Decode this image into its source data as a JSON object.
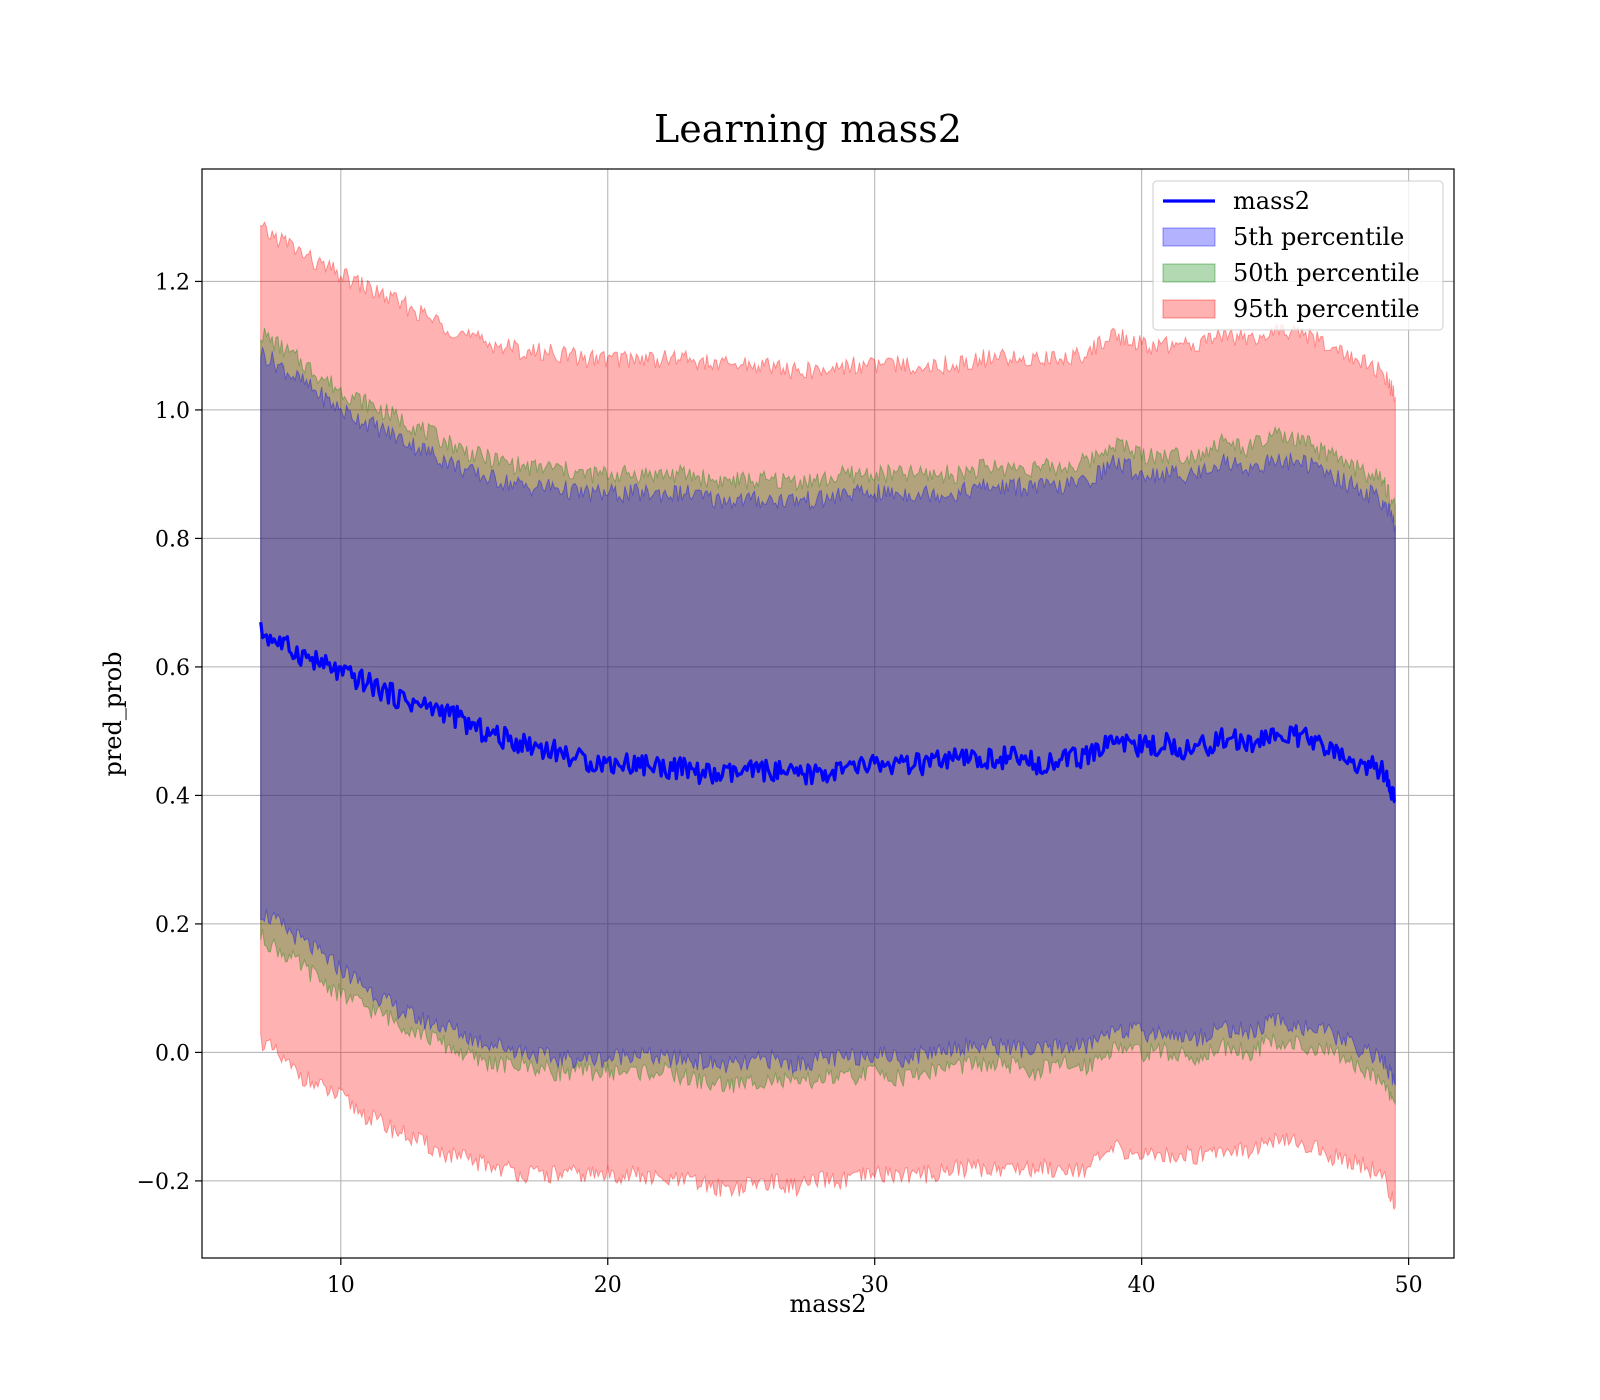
{
  "chart_data": {
    "type": "line",
    "title": "Learning mass2",
    "xlabel": "mass2",
    "ylabel": "pred_prob",
    "xlim": [
      4.8,
      51.7
    ],
    "ylim": [
      -0.32,
      1.375
    ],
    "xticks": [
      10,
      20,
      30,
      40,
      50
    ],
    "yticks": [
      -0.2,
      0.0,
      0.2,
      0.4,
      0.6,
      0.8,
      1.0,
      1.2
    ],
    "ytick_labels": [
      "−0.2",
      "0.0",
      "0.2",
      "0.4",
      "0.6",
      "0.8",
      "1.0",
      "1.2"
    ],
    "xtick_labels": [
      "10",
      "20",
      "30",
      "40",
      "50"
    ],
    "grid": true,
    "legend_position": "top-right",
    "x": [
      7.0,
      8.0,
      9.0,
      10.0,
      11.0,
      12.0,
      13.0,
      14.0,
      15.0,
      16.0,
      17.0,
      18.0,
      19.0,
      20.0,
      21.0,
      22.0,
      23.0,
      24.0,
      25.0,
      26.0,
      27.0,
      28.0,
      29.0,
      30.0,
      31.0,
      32.0,
      33.0,
      34.0,
      35.0,
      36.0,
      37.0,
      38.0,
      39.0,
      40.0,
      41.0,
      42.0,
      43.0,
      44.0,
      45.0,
      46.0,
      47.0,
      48.0,
      49.0,
      49.5
    ],
    "series": [
      {
        "name": "mass2",
        "kind": "line",
        "color": "#0000ff",
        "values": [
          0.655,
          0.63,
          0.61,
          0.59,
          0.575,
          0.555,
          0.54,
          0.53,
          0.505,
          0.49,
          0.48,
          0.47,
          0.455,
          0.45,
          0.45,
          0.445,
          0.44,
          0.43,
          0.435,
          0.44,
          0.43,
          0.435,
          0.44,
          0.45,
          0.445,
          0.45,
          0.455,
          0.455,
          0.46,
          0.45,
          0.455,
          0.46,
          0.49,
          0.475,
          0.48,
          0.47,
          0.49,
          0.48,
          0.495,
          0.49,
          0.47,
          0.45,
          0.44,
          0.39
        ]
      },
      {
        "name": "5th percentile",
        "kind": "band",
        "color": "#0000ff",
        "lower": [
          0.22,
          0.19,
          0.16,
          0.13,
          0.1,
          0.07,
          0.05,
          0.04,
          0.02,
          0.01,
          0.0,
          -0.01,
          -0.01,
          -0.01,
          0.0,
          -0.01,
          -0.01,
          -0.02,
          -0.02,
          -0.01,
          -0.02,
          -0.01,
          -0.01,
          0.0,
          -0.01,
          0.0,
          0.01,
          0.01,
          0.01,
          0.0,
          0.01,
          0.01,
          0.04,
          0.03,
          0.03,
          0.02,
          0.04,
          0.03,
          0.05,
          0.04,
          0.03,
          0.01,
          -0.01,
          -0.05
        ],
        "upper": [
          1.09,
          1.06,
          1.03,
          1.0,
          0.98,
          0.96,
          0.94,
          0.92,
          0.9,
          0.89,
          0.88,
          0.88,
          0.87,
          0.87,
          0.87,
          0.87,
          0.87,
          0.86,
          0.86,
          0.86,
          0.86,
          0.86,
          0.87,
          0.87,
          0.87,
          0.87,
          0.87,
          0.88,
          0.88,
          0.88,
          0.88,
          0.89,
          0.92,
          0.9,
          0.9,
          0.9,
          0.92,
          0.91,
          0.92,
          0.92,
          0.9,
          0.88,
          0.86,
          0.82
        ]
      },
      {
        "name": "50th percentile",
        "kind": "band",
        "color": "#008000",
        "lower": [
          0.18,
          0.15,
          0.12,
          0.09,
          0.07,
          0.05,
          0.03,
          0.01,
          -0.01,
          -0.02,
          -0.02,
          -0.03,
          -0.03,
          -0.03,
          -0.03,
          -0.03,
          -0.04,
          -0.05,
          -0.05,
          -0.04,
          -0.05,
          -0.04,
          -0.04,
          -0.03,
          -0.04,
          -0.03,
          -0.02,
          -0.02,
          -0.02,
          -0.03,
          -0.02,
          -0.02,
          0.01,
          0.0,
          0.0,
          -0.01,
          0.01,
          0.0,
          0.02,
          0.01,
          0.0,
          -0.02,
          -0.04,
          -0.08
        ],
        "upper": [
          1.12,
          1.09,
          1.06,
          1.03,
          1.01,
          0.99,
          0.97,
          0.95,
          0.93,
          0.92,
          0.91,
          0.91,
          0.9,
          0.9,
          0.9,
          0.9,
          0.9,
          0.89,
          0.89,
          0.89,
          0.89,
          0.89,
          0.9,
          0.9,
          0.9,
          0.9,
          0.9,
          0.91,
          0.91,
          0.91,
          0.91,
          0.92,
          0.95,
          0.93,
          0.93,
          0.93,
          0.95,
          0.94,
          0.96,
          0.95,
          0.93,
          0.91,
          0.89,
          0.85
        ]
      },
      {
        "name": "95th percentile",
        "kind": "band",
        "color": "#ff0000",
        "lower": [
          0.02,
          -0.02,
          -0.05,
          -0.07,
          -0.1,
          -0.12,
          -0.14,
          -0.16,
          -0.17,
          -0.18,
          -0.19,
          -0.19,
          -0.19,
          -0.19,
          -0.19,
          -0.2,
          -0.2,
          -0.21,
          -0.21,
          -0.2,
          -0.21,
          -0.2,
          -0.2,
          -0.19,
          -0.19,
          -0.19,
          -0.18,
          -0.18,
          -0.18,
          -0.18,
          -0.18,
          -0.18,
          -0.15,
          -0.16,
          -0.16,
          -0.16,
          -0.15,
          -0.15,
          -0.14,
          -0.14,
          -0.16,
          -0.17,
          -0.19,
          -0.24
        ],
        "upper": [
          1.28,
          1.26,
          1.23,
          1.21,
          1.19,
          1.17,
          1.15,
          1.13,
          1.11,
          1.1,
          1.09,
          1.09,
          1.08,
          1.08,
          1.08,
          1.08,
          1.08,
          1.07,
          1.07,
          1.07,
          1.06,
          1.06,
          1.07,
          1.07,
          1.07,
          1.07,
          1.07,
          1.08,
          1.08,
          1.08,
          1.08,
          1.09,
          1.12,
          1.1,
          1.1,
          1.1,
          1.12,
          1.11,
          1.12,
          1.12,
          1.1,
          1.08,
          1.06,
          1.02
        ]
      }
    ]
  }
}
